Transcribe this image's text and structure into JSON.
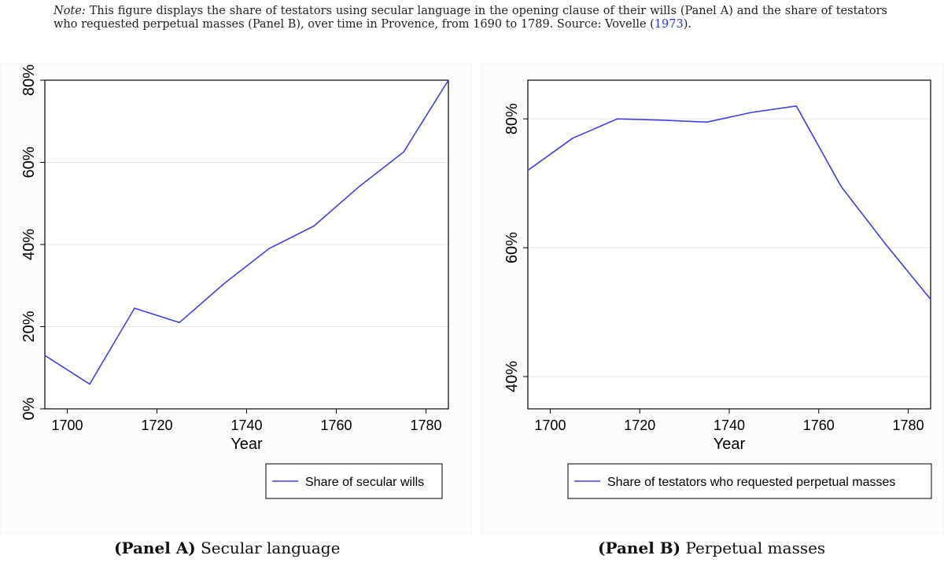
{
  "note": {
    "label": "Note:",
    "text": "This figure displays the share of testators using secular language in the opening clause of their wills (Panel A) and the share of testators who requested perpetual masses (Panel B), over time in Provence, from 1690 to 1789. Source: Vovelle (",
    "cite": "1973",
    "end": ")."
  },
  "captions": {
    "a_label": "(Panel A)",
    "a_title": "Secular language",
    "b_label": "(Panel B)",
    "b_title": "Perpetual masses"
  },
  "colors": {
    "line": "#4040e0",
    "grid": "#e6e6e6",
    "axis": "#000000"
  },
  "chart_data": [
    {
      "type": "line",
      "title": "",
      "xlabel": "Year",
      "ylabel": "",
      "xlim": [
        1695,
        1785
      ],
      "ylim": [
        0,
        80
      ],
      "x_ticks": [
        1700,
        1720,
        1740,
        1760,
        1780
      ],
      "y_ticks": [
        0,
        20,
        40,
        60,
        80
      ],
      "y_tick_labels": [
        "0%",
        "20%",
        "40%",
        "60%",
        "80%"
      ],
      "grid": true,
      "legend_position": "bottom-right",
      "series": [
        {
          "name": "Share of secular wills",
          "x": [
            1695,
            1705,
            1715,
            1725,
            1735,
            1745,
            1755,
            1765,
            1775,
            1785
          ],
          "y": [
            13,
            6,
            24.5,
            21,
            30.5,
            39,
            44.5,
            54,
            62.5,
            80
          ]
        }
      ]
    },
    {
      "type": "line",
      "title": "",
      "xlabel": "Year",
      "ylabel": "",
      "xlim": [
        1695,
        1785
      ],
      "ylim": [
        35,
        86
      ],
      "x_ticks": [
        1700,
        1720,
        1740,
        1760,
        1780
      ],
      "y_ticks": [
        40,
        60,
        80
      ],
      "y_tick_labels": [
        "40%",
        "60%",
        "80%"
      ],
      "grid": true,
      "legend_position": "bottom-right",
      "series": [
        {
          "name": "Share of testators who requested perpetual masses",
          "x": [
            1695,
            1705,
            1715,
            1725,
            1735,
            1745,
            1755,
            1765,
            1775,
            1785
          ],
          "y": [
            72,
            77,
            80,
            79.8,
            79.5,
            81,
            82,
            69.5,
            60.5,
            52
          ]
        }
      ]
    }
  ]
}
